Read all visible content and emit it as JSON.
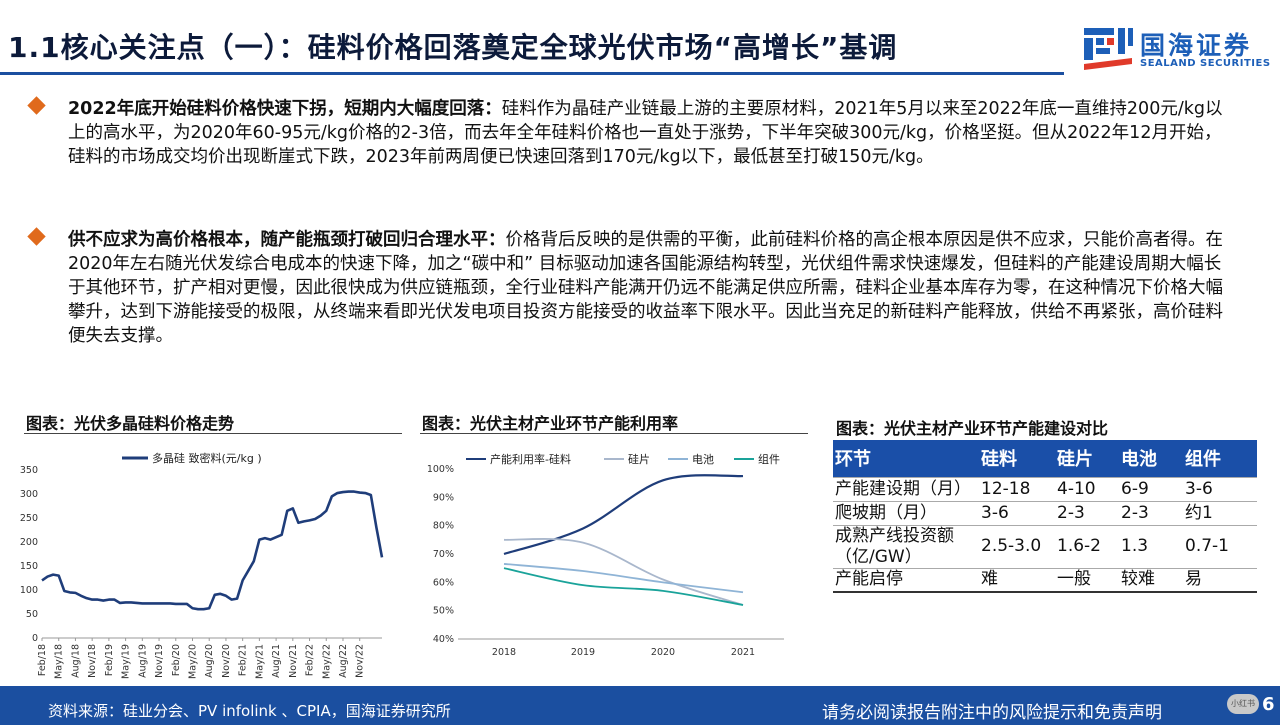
{
  "header": {
    "title": "1.1核心关注点（一）：硅料价格回落奠定全球光伏市场“高增长”基调",
    "logo_cn": "国海证券",
    "logo_en": "SEALAND SECURITIES"
  },
  "paragraphs": [
    {
      "lead": "2022年底开始硅料价格快速下拐，短期内大幅度回落：",
      "body": "硅料作为晶硅产业链最上游的主要原材料，2021年5月以来至2022年底一直维持200元/kg以上的高水平，为2020年60-95元/kg价格的2-3倍，而去年全年硅料价格也一直处于涨势，下半年突破300元/kg，价格坚挺。但从2022年12月开始，硅料的市场成交均价出现断崖式下跌，2023年前两周便已快速回落到170元/kg以下，最低甚至打破150元/kg。"
    },
    {
      "lead": "供不应求为高价格根本，随产能瓶颈打破回归合理水平：",
      "body": "价格背后反映的是供需的平衡，此前硅料价格的高企根本原因是供不应求，只能价高者得。在2020年左右随光伏发综合电成本的快速下降，加之“碳中和” 目标驱动加速各国能源结构转型，光伏组件需求快速爆发，但硅料的产能建设周期大幅长于其他环节，扩产相对更慢，因此很快成为供应链瓶颈，全行业硅料产能满开仍远不能满足供应所需，硅料企业基本库存为零，在这种情况下价格大幅攀升，达到下游能接受的极限，从终端来看即光伏发电项目投资方能接受的收益率下限水平。因此当充足的新硅料产能释放，供给不再紧张，高价硅料便失去支撑。"
    }
  ],
  "figures": {
    "fig1_title": "图表：光伏多晶硅料价格走势",
    "fig2_title": "图表：光伏主材产业环节产能利用率",
    "fig3_title": "图表：光伏主材产业环节产能建设对比"
  },
  "chart_data": [
    {
      "type": "line",
      "legend": [
        "多晶硅 致密料(元/kg )"
      ],
      "color": "#1f3d7a",
      "ylim": [
        0,
        350
      ],
      "yticks": [
        0,
        50,
        100,
        150,
        200,
        250,
        300,
        350
      ],
      "xticks": [
        "Feb/18",
        "May/18",
        "Aug/18",
        "Nov/18",
        "Feb/19",
        "May/19",
        "Aug/19",
        "Nov/19",
        "Feb/20",
        "May/20",
        "Aug/20",
        "Nov/20",
        "Feb/21",
        "May/21",
        "Aug/21",
        "Nov/21",
        "Feb/22",
        "May/22",
        "Aug/22",
        "Nov/22"
      ],
      "x_months": [
        0,
        1,
        2,
        3,
        4,
        5,
        6,
        7,
        8,
        9,
        10,
        11,
        12,
        13,
        14,
        15,
        16,
        17,
        18,
        19,
        20,
        21,
        22,
        23,
        24,
        25,
        26,
        27,
        28,
        29,
        30,
        31,
        32,
        33,
        34,
        35,
        36,
        37,
        38,
        39,
        40,
        41,
        42,
        43,
        44,
        45,
        46,
        47,
        48,
        49,
        50,
        51,
        52,
        53,
        54,
        55,
        56,
        57,
        58,
        59,
        60,
        61
      ],
      "values": [
        120,
        128,
        132,
        130,
        98,
        95,
        94,
        88,
        83,
        80,
        80,
        78,
        80,
        80,
        73,
        74,
        74,
        73,
        72,
        72,
        72,
        72,
        72,
        72,
        71,
        71,
        71,
        62,
        60,
        60,
        62,
        90,
        92,
        88,
        80,
        82,
        120,
        140,
        160,
        205,
        208,
        205,
        210,
        215,
        265,
        270,
        240,
        243,
        245,
        248,
        255,
        265,
        295,
        302,
        304,
        305,
        305,
        303,
        302,
        298,
        230,
        168
      ]
    },
    {
      "type": "line",
      "ylim": [
        40,
        100
      ],
      "yticks": [
        "40%",
        "50%",
        "60%",
        "70%",
        "80%",
        "90%",
        "100%"
      ],
      "x": [
        "2018",
        "2019",
        "2020",
        "2021"
      ],
      "series": [
        {
          "name": "产能利用率-硅料",
          "color": "#1f3d7a",
          "values": [
            70,
            79,
            96,
            97.5
          ]
        },
        {
          "name": "硅片",
          "color": "#a9b7cc",
          "values": [
            75,
            74,
            61,
            52
          ]
        },
        {
          "name": "电池",
          "color": "#8fb4d6",
          "values": [
            66.5,
            64,
            60,
            56.5
          ]
        },
        {
          "name": "组件",
          "color": "#1aa39a",
          "values": [
            65,
            59,
            57,
            52
          ]
        }
      ]
    }
  ],
  "table": {
    "headers": [
      "环节",
      "硅料",
      "硅片",
      "电池",
      "组件"
    ],
    "rows": [
      [
        "产能建设期（月）",
        "12-18",
        "4-10",
        "6-9",
        "3-6"
      ],
      [
        "爬坡期（月）",
        "3-6",
        "2-3",
        "2-3",
        "约1"
      ],
      [
        "成熟产线投资额（亿/GW）",
        "2.5-3.0",
        "1.6-2",
        "1.3",
        "0.7-1"
      ],
      [
        "产能启停",
        "难",
        "一般",
        "较难",
        "易"
      ]
    ]
  },
  "footer": {
    "source": "资料来源：硅业分会、PV infolink 、CPIA，国海证券研究所",
    "disclaimer": "请务必阅读报告附注中的风险提示和免责声明",
    "pill": "小红书",
    "page": "6"
  },
  "colors": {
    "brand_blue": "#1b4fa0",
    "bullet_orange": "#e06a1c",
    "table_header": "#1a4fa8"
  }
}
